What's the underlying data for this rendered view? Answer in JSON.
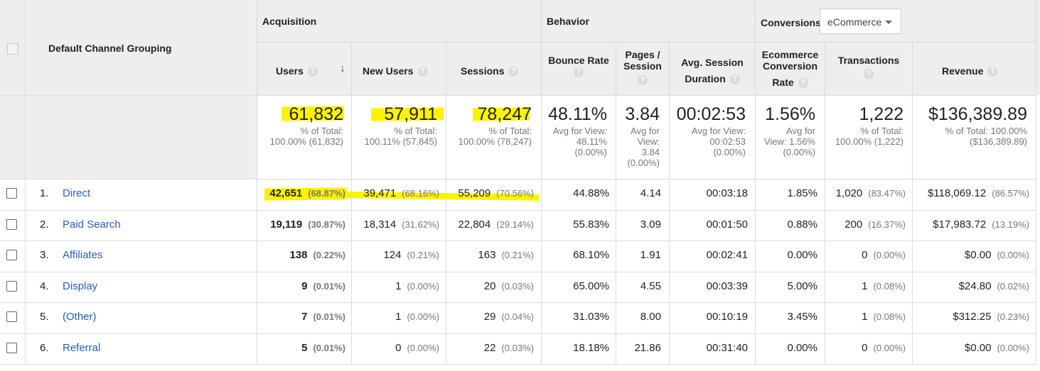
{
  "header": {
    "dimension_label": "Default Channel Grouping",
    "groups": {
      "acquisition": "Acquisition",
      "behavior": "Behavior",
      "conversions": "Conversions"
    },
    "conversions_dropdown": "eCommerce",
    "columns": {
      "users": "Users",
      "new_users": "New Users",
      "sessions": "Sessions",
      "bounce_rate": "Bounce Rate",
      "pages_per_session_l1": "Pages /",
      "pages_per_session_l2": "Session",
      "avg_duration_l1": "Avg. Session",
      "avg_duration_l2": "Duration",
      "ecom_rate_l1": "Ecommerce",
      "ecom_rate_l2": "Conversion",
      "ecom_rate_l3": "Rate",
      "transactions": "Transactions",
      "revenue": "Revenue"
    },
    "help_glyph": "?",
    "sort_glyph": "↓"
  },
  "summary": {
    "users": {
      "value": "61,832",
      "l1": "% of Total:",
      "l2": "100.00% (61,832)"
    },
    "new_users": {
      "value": "57,911",
      "l1": "% of Total:",
      "l2": "100.11% (57,845)"
    },
    "sessions": {
      "value": "78,247",
      "l1": "% of Total:",
      "l2": "100.00% (78,247)"
    },
    "bounce_rate": {
      "value": "48.11%",
      "l1": "Avg for View:",
      "l2": "48.11%",
      "l3": "(0.00%)"
    },
    "pages_per_session": {
      "value": "3.84",
      "l1": "Avg for",
      "l2": "View:",
      "l3": "3.84",
      "l4": "(0.00%)"
    },
    "avg_duration": {
      "value": "00:02:53",
      "l1": "Avg for View:",
      "l2": "00:02:53",
      "l3": "(0.00%)"
    },
    "ecom_rate": {
      "value": "1.56%",
      "l1": "Avg for",
      "l2": "View: 1.56%",
      "l3": "(0.00%)"
    },
    "transactions": {
      "value": "1,222",
      "l1": "% of Total:",
      "l2": "100.00% (1,222)"
    },
    "revenue": {
      "value": "$136,389.89",
      "l1": "% of Total: 100.00%",
      "l2": "($136,389.89)"
    }
  },
  "rows": [
    {
      "idx": "1.",
      "name": "Direct",
      "users": "42,651",
      "users_pct": "(68.87%)",
      "new_users": "39,471",
      "new_users_pct": "(68.16%)",
      "sessions": "55,209",
      "sessions_pct": "(70.56%)",
      "bounce": "44.88%",
      "pages": "4.14",
      "duration": "00:03:18",
      "ecom": "1.85%",
      "trans": "1,020",
      "trans_pct": "(83.47%)",
      "revenue": "$118,069.12",
      "revenue_pct": "(86.57%)"
    },
    {
      "idx": "2.",
      "name": "Paid Search",
      "users": "19,119",
      "users_pct": "(30.87%)",
      "new_users": "18,314",
      "new_users_pct": "(31.62%)",
      "sessions": "22,804",
      "sessions_pct": "(29.14%)",
      "bounce": "55.83%",
      "pages": "3.09",
      "duration": "00:01:50",
      "ecom": "0.88%",
      "trans": "200",
      "trans_pct": "(16.37%)",
      "revenue": "$17,983.72",
      "revenue_pct": "(13.19%)"
    },
    {
      "idx": "3.",
      "name": "Affiliates",
      "users": "138",
      "users_pct": "(0.22%)",
      "new_users": "124",
      "new_users_pct": "(0.21%)",
      "sessions": "163",
      "sessions_pct": "(0.21%)",
      "bounce": "68.10%",
      "pages": "1.91",
      "duration": "00:02:41",
      "ecom": "0.00%",
      "trans": "0",
      "trans_pct": "(0.00%)",
      "revenue": "$0.00",
      "revenue_pct": "(0.00%)"
    },
    {
      "idx": "4.",
      "name": "Display",
      "users": "9",
      "users_pct": "(0.01%)",
      "new_users": "1",
      "new_users_pct": "(0.00%)",
      "sessions": "20",
      "sessions_pct": "(0.03%)",
      "bounce": "65.00%",
      "pages": "4.55",
      "duration": "00:03:39",
      "ecom": "5.00%",
      "trans": "1",
      "trans_pct": "(0.08%)",
      "revenue": "$24.80",
      "revenue_pct": "(0.02%)"
    },
    {
      "idx": "5.",
      "name": "(Other)",
      "users": "7",
      "users_pct": "(0.01%)",
      "new_users": "1",
      "new_users_pct": "(0.00%)",
      "sessions": "29",
      "sessions_pct": "(0.04%)",
      "bounce": "31.03%",
      "pages": "8.00",
      "duration": "00:10:19",
      "ecom": "3.45%",
      "trans": "1",
      "trans_pct": "(0.08%)",
      "revenue": "$312.25",
      "revenue_pct": "(0.23%)"
    },
    {
      "idx": "6.",
      "name": "Referral",
      "users": "5",
      "users_pct": "(0.01%)",
      "new_users": "0",
      "new_users_pct": "(0.00%)",
      "sessions": "22",
      "sessions_pct": "(0.03%)",
      "bounce": "18.18%",
      "pages": "21.86",
      "duration": "00:31:40",
      "ecom": "0.00%",
      "trans": "0",
      "trans_pct": "(0.00%)",
      "revenue": "$0.00",
      "revenue_pct": "(0.00%)"
    }
  ],
  "colors": {
    "highlight": "#fff200",
    "link": "#2a5db0",
    "header_bg": "#eeeeee"
  }
}
